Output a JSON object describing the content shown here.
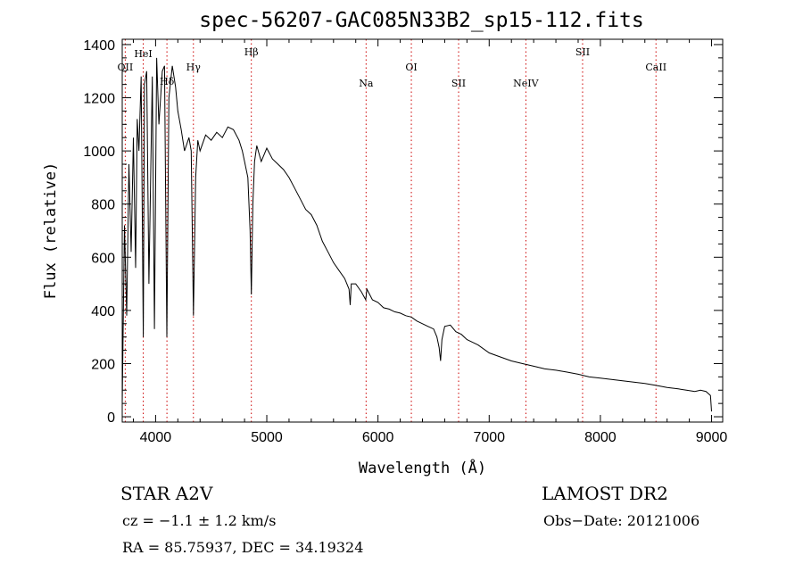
{
  "chart_data": {
    "type": "line",
    "title": "spec-56207-GAC085N33B2_sp15-112.fits",
    "xlabel": "Wavelength (Å)",
    "ylabel": "Flux (relative)",
    "xlim": [
      3700,
      9100
    ],
    "ylim": [
      -20,
      1420
    ],
    "xticks": [
      4000,
      5000,
      6000,
      7000,
      8000,
      9000
    ],
    "yticks": [
      0,
      200,
      400,
      600,
      800,
      1000,
      1200,
      1400
    ],
    "line_color": "#000000",
    "marker_color": "#cc0000",
    "grid": false,
    "series": [
      {
        "x": [
          3700,
          3720,
          3740,
          3760,
          3780,
          3800,
          3820,
          3835,
          3850,
          3870,
          3889,
          3900,
          3920,
          3940,
          3970,
          3990,
          4010,
          4030,
          4060,
          4080,
          4101,
          4120,
          4150,
          4180,
          4200,
          4230,
          4260,
          4300,
          4320,
          4340,
          4360,
          4380,
          4400,
          4450,
          4500,
          4550,
          4600,
          4650,
          4700,
          4750,
          4780,
          4800,
          4830,
          4850,
          4861,
          4875,
          4890,
          4910,
          4950,
          5000,
          5050,
          5100,
          5150,
          5200,
          5250,
          5300,
          5350,
          5400,
          5450,
          5500,
          5550,
          5600,
          5650,
          5700,
          5740,
          5750,
          5760,
          5800,
          5850,
          5890,
          5900,
          5950,
          6000,
          6050,
          6100,
          6150,
          6200,
          6250,
          6300,
          6350,
          6400,
          6450,
          6500,
          6530,
          6550,
          6563,
          6575,
          6600,
          6650,
          6700,
          6750,
          6800,
          6850,
          6900,
          7000,
          7100,
          7200,
          7300,
          7400,
          7500,
          7600,
          7700,
          7800,
          7900,
          8000,
          8100,
          8200,
          8300,
          8400,
          8500,
          8600,
          8700,
          8800,
          8850,
          8900,
          8950,
          8990,
          9000
        ],
        "y": [
          50,
          720,
          380,
          950,
          620,
          1050,
          560,
          1120,
          1000,
          1280,
          300,
          1250,
          1300,
          500,
          1280,
          330,
          1350,
          1100,
          1300,
          1320,
          300,
          1200,
          1320,
          1240,
          1150,
          1080,
          1000,
          1050,
          1000,
          380,
          900,
          1040,
          1000,
          1060,
          1040,
          1070,
          1050,
          1090,
          1080,
          1040,
          1000,
          960,
          900,
          700,
          460,
          800,
          960,
          1020,
          960,
          1010,
          970,
          950,
          930,
          900,
          860,
          820,
          780,
          760,
          720,
          660,
          620,
          580,
          550,
          520,
          480,
          420,
          500,
          500,
          470,
          440,
          480,
          440,
          430,
          410,
          405,
          395,
          390,
          380,
          375,
          360,
          350,
          340,
          330,
          300,
          260,
          210,
          290,
          340,
          345,
          320,
          310,
          290,
          280,
          270,
          240,
          225,
          210,
          200,
          190,
          180,
          175,
          168,
          160,
          150,
          145,
          140,
          135,
          130,
          125,
          118,
          110,
          105,
          98,
          95,
          100,
          95,
          80,
          20
        ]
      }
    ],
    "lines": [
      {
        "name": "OII",
        "x": 3727
      },
      {
        "name": "HeI",
        "x": 3889
      },
      {
        "name": "Hδ",
        "x": 4102
      },
      {
        "name": "Hγ",
        "x": 4340
      },
      {
        "name": "Hβ",
        "x": 4861
      },
      {
        "name": "Na",
        "x": 5893
      },
      {
        "name": "OI",
        "x": 6300
      },
      {
        "name": "SII",
        "x": 6725
      },
      {
        "name": "NeIV",
        "x": 7330
      },
      {
        "name": "SII",
        "x": 7840
      },
      {
        "name": "CaII",
        "x": 8500
      }
    ]
  },
  "info": {
    "object": "STAR    A2V",
    "survey": "LAMOST DR2",
    "cz": "cz = −1.1 ± 1.2 km/s",
    "obsdate": "Obs−Date: 20121006",
    "radec": "RA =  85.75937, DEC =  34.19324"
  }
}
